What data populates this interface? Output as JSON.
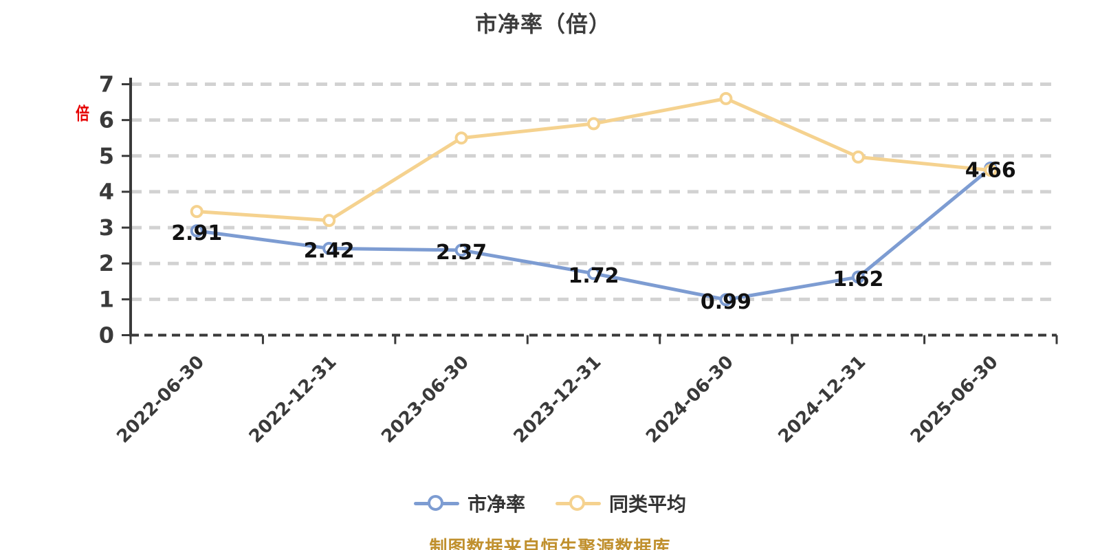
{
  "title": {
    "text": "市净率（倍）"
  },
  "y_axis": {
    "unit_label": "倍",
    "unit_color": "#e60000"
  },
  "legend": {
    "items": [
      {
        "label": "市净率",
        "color": "#7d9cd2"
      },
      {
        "label": "同类平均",
        "color": "#f5d28f"
      }
    ]
  },
  "footer": {
    "text": "制图数据来自恒生聚源数据库",
    "color": "#c0902e"
  },
  "chart_data": {
    "type": "line",
    "title": "市净率（倍）",
    "categories": [
      "2022-06-30",
      "2022-12-31",
      "2023-06-30",
      "2023-12-31",
      "2024-06-30",
      "2024-12-31",
      "2025-06-30"
    ],
    "series": [
      {
        "name": "市净率",
        "color": "#7d9cd2",
        "values": [
          2.91,
          2.42,
          2.37,
          1.72,
          0.99,
          1.62,
          4.66
        ],
        "point_labels": [
          "2.91",
          "2.42",
          "2.37",
          "1.72",
          "0.99",
          "1.62",
          "4.66"
        ]
      },
      {
        "name": "同类平均",
        "color": "#f5d28f",
        "values": [
          3.45,
          3.2,
          5.5,
          5.9,
          6.6,
          4.97,
          4.6
        ],
        "point_labels": []
      }
    ],
    "ylim": [
      0,
      7
    ],
    "yticks": [
      0,
      1,
      2,
      3,
      4,
      5,
      6,
      7
    ],
    "grid": {
      "horizontal": true,
      "style": "dashed",
      "color": "#d2d2d2"
    },
    "axis_color": "#3a3a3a",
    "point_label_color": "#111111",
    "legend_position": "bottom"
  }
}
